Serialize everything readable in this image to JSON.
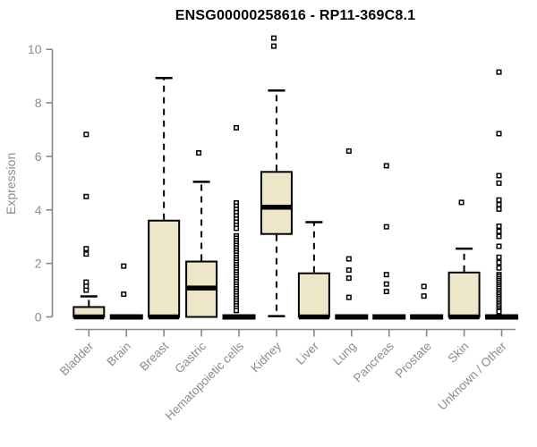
{
  "chart_data": {
    "type": "box",
    "title": "ENSG00000258616 - RP11-369C8.1",
    "ylabel": "Expression",
    "xlabel": "",
    "ylim": [
      0,
      10.6
    ],
    "yticks": [
      0,
      2,
      4,
      6,
      8,
      10
    ],
    "grid": false,
    "box_fill_color": "#ede6c8",
    "box_line_color": "#000000",
    "axis_color": "#8c8c8c",
    "boxes": [
      {
        "category": "Bladder",
        "q1": 0,
        "median": 0,
        "q3": 0.37,
        "whisker_low": 0,
        "whisker_high": 0.77,
        "outliers": [
          1.0,
          1.15,
          1.3,
          2.35,
          2.55,
          4.5,
          6.82
        ]
      },
      {
        "category": "Brain",
        "q1": 0,
        "median": 0,
        "q3": 0,
        "whisker_low": 0,
        "whisker_high": 0,
        "outliers": [
          0.85,
          1.9
        ]
      },
      {
        "category": "Breast",
        "q1": 0,
        "median": 0,
        "q3": 3.6,
        "whisker_low": 0,
        "whisker_high": 8.93,
        "outliers": []
      },
      {
        "category": "Gastric",
        "q1": 0,
        "median": 1.08,
        "q3": 2.07,
        "whisker_low": 0,
        "whisker_high": 5.05,
        "outliers": [
          6.13
        ]
      },
      {
        "category": "Hematopoietic cells",
        "q1": 0,
        "median": 0,
        "q3": 0,
        "whisker_low": 0,
        "whisker_high": 0,
        "outliers": [
          7.07,
          4.26,
          4.14,
          4.02,
          3.9,
          3.78,
          3.66,
          3.54,
          3.42,
          3.31,
          3.03,
          2.94,
          2.85,
          2.76,
          2.67,
          2.58,
          2.49,
          2.4,
          2.31,
          2.22,
          2.13,
          2.04,
          1.95,
          1.86,
          1.77,
          1.68,
          1.59,
          1.5,
          1.41,
          1.32,
          1.23,
          1.14,
          1.05,
          0.96,
          0.87,
          0.78,
          0.69,
          0.6,
          0.51,
          0.42,
          0.33,
          0.24
        ]
      },
      {
        "category": "Kidney",
        "q1": 3.1,
        "median": 4.1,
        "q3": 5.42,
        "whisker_low": 0.03,
        "whisker_high": 8.46,
        "outliers": [
          10.12,
          10.42
        ]
      },
      {
        "category": "Liver",
        "q1": 0,
        "median": 0,
        "q3": 1.63,
        "whisker_low": 0,
        "whisker_high": 3.54,
        "outliers": []
      },
      {
        "category": "Lung",
        "q1": 0,
        "median": 0,
        "q3": 0,
        "whisker_low": 0,
        "whisker_high": 0,
        "outliers": [
          6.2,
          2.17,
          1.75,
          1.45,
          0.73
        ]
      },
      {
        "category": "Pancreas",
        "q1": 0,
        "median": 0,
        "q3": 0,
        "whisker_low": 0,
        "whisker_high": 0,
        "outliers": [
          5.65,
          3.37,
          1.58,
          1.23,
          0.95
        ]
      },
      {
        "category": "Prostate",
        "q1": 0,
        "median": 0,
        "q3": 0,
        "whisker_low": 0,
        "whisker_high": 0,
        "outliers": [
          1.14,
          0.78
        ]
      },
      {
        "category": "Skin",
        "q1": 0,
        "median": 0,
        "q3": 1.66,
        "whisker_low": 0,
        "whisker_high": 2.55,
        "outliers": [
          4.28
        ]
      },
      {
        "category": "Unknown / Other",
        "q1": 0,
        "median": 0,
        "q3": 0,
        "whisker_low": 0,
        "whisker_high": 0,
        "outliers": [
          9.15,
          6.85,
          5.28,
          5.0,
          4.37,
          4.2,
          4.03,
          3.39,
          3.2,
          3.01,
          2.64,
          2.23,
          2.03,
          1.83,
          1.58,
          1.51,
          1.43,
          1.36,
          1.29,
          1.21,
          1.14,
          1.07,
          0.99,
          0.92,
          0.85,
          0.77,
          0.7,
          0.63,
          0.55,
          0.48,
          0.41,
          0.33,
          0.26,
          0.2
        ]
      }
    ]
  }
}
